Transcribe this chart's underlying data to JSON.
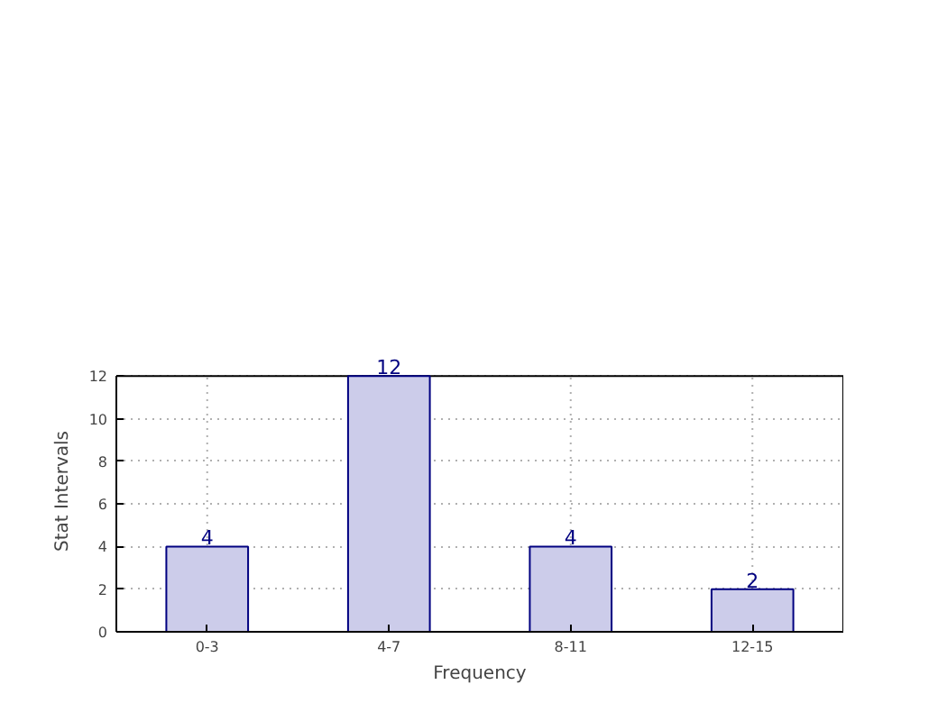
{
  "chart_data": {
    "type": "bar",
    "xlabel": "Frequency",
    "ylabel": "Stat Intervals",
    "categories": [
      "0-3",
      "4-7",
      "8-11",
      "12-15"
    ],
    "values": [
      4,
      12,
      4,
      2
    ],
    "color": "#ccccea",
    "ylim": [
      0,
      12
    ],
    "yticks": [
      0,
      2,
      4,
      6,
      8,
      10,
      12
    ],
    "grid": true,
    "data_labels": true
  }
}
